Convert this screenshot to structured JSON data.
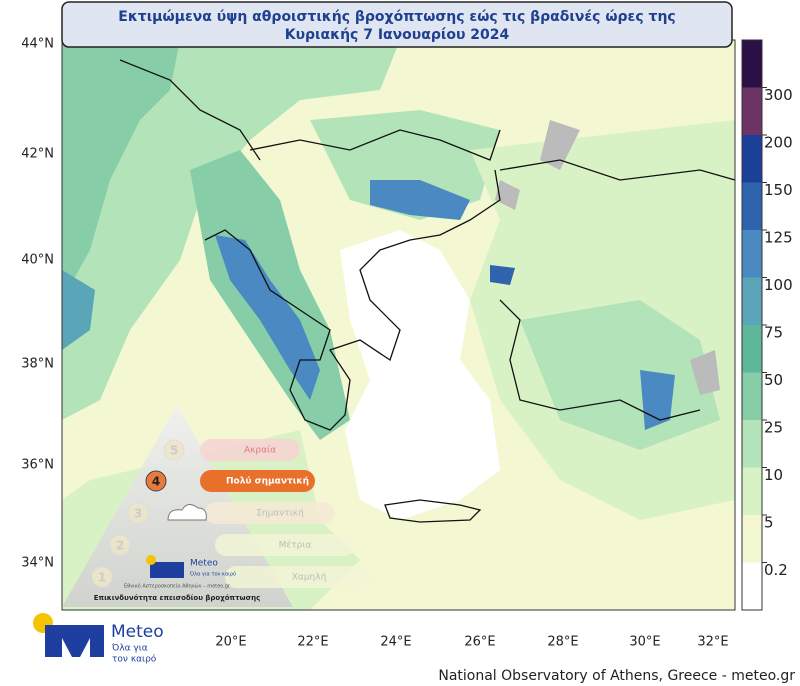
{
  "title": [
    "Εκτιμώμενα ύψη αθροιστικής βροχόπτωσης εώς τις βραδινές ώρες της",
    "Κυριακής 7 Ιανουαρίου 2024"
  ],
  "map": {
    "lat_labels": [
      "44°N",
      "42°N",
      "40°N",
      "38°N",
      "36°N",
      "34°N"
    ],
    "lon_labels": [
      "20°E",
      "22°E",
      "24°E",
      "26°E",
      "28°E",
      "30°E",
      "32°E"
    ]
  },
  "colorbar": {
    "labels": [
      0.2,
      5,
      10,
      25,
      50,
      75,
      100,
      125,
      150,
      200,
      300
    ],
    "colors": [
      "#ffffff",
      "#f3f8d2",
      "#d9f2c5",
      "#b3e3b8",
      "#86cda8",
      "#5fb79a",
      "#5aa5b8",
      "#4b89c2",
      "#2f64ad",
      "#1c3f98",
      "#6d3566",
      "#2b0f47"
    ]
  },
  "risk_legend": {
    "levels": [
      {
        "number": 5,
        "label": "Ακραία"
      },
      {
        "number": 4,
        "label": "Πολύ σημαντική"
      },
      {
        "number": 3,
        "label": "Σημαντική"
      },
      {
        "number": 2,
        "label": "Μέτρια"
      },
      {
        "number": 1,
        "label": "Χαμηλή"
      }
    ],
    "logo_name": "Meteo",
    "logo_tagline": "Όλα για τον καιρό",
    "logo_org": "Εθνικό Αστεροσκοπείο Αθηνών – meteo.gr",
    "caption": "Επικινδυνότητα επεισοδίου βροχόπτωσης"
  },
  "logo": {
    "name": "Meteo",
    "tagline": [
      "Όλα για",
      "τον καιρό"
    ]
  },
  "footer": "National Observatory of Athens, Greece - meteo.gr"
}
